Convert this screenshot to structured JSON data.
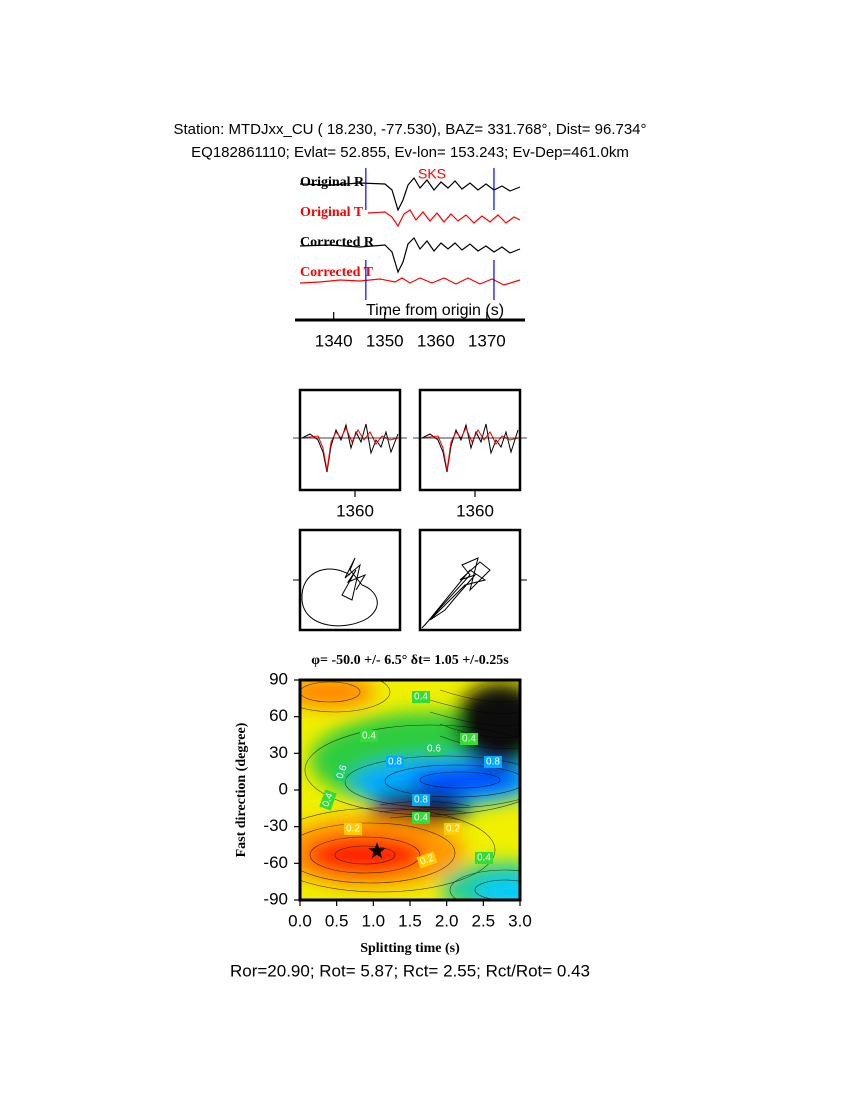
{
  "header": {
    "station": "Station: MTDJxx_CU (  18.230,  -77.530), BAZ=  331.768°, Dist=   96.734°",
    "event": "EQ182861110; Evlat=  52.855, Ev-lon= 153.243; Ev-Dep=461.0km"
  },
  "chart_data": [
    {
      "type": "waveform",
      "traces": [
        "Original R",
        "Original T",
        "Corrected R",
        "Corrected T"
      ],
      "trace_colors": [
        "#000000",
        "#ff0000",
        "#000000",
        "#ff0000"
      ],
      "phase": "SKS",
      "phase_color": "#ff0000",
      "xlabel": "Time from origin (s)",
      "xlim": [
        1333.4,
        1376.5
      ],
      "xticks": [
        1340,
        1350,
        1360,
        1370
      ],
      "window": [
        1346.3,
        1371.4
      ],
      "window_color": "#0000ff"
    },
    {
      "type": "zoom",
      "xlim": [
        1349,
        1369
      ],
      "xticks": [
        1360
      ]
    },
    {
      "type": "zoom",
      "xlim": [
        1349,
        1369
      ],
      "xticks": [
        1360
      ]
    },
    {
      "type": "contour",
      "title": "φ= -50.0 +/- 6.5° δt= 1.05 +/-0.25s",
      "xlabel": "Splitting time (s)",
      "ylabel": "Fast direction (degree)",
      "xlim": [
        0,
        3
      ],
      "ylim": [
        -90,
        90
      ],
      "xticks": [
        {
          "value": 0,
          "label": "0.0"
        },
        {
          "value": 0.5,
          "label": "0.5"
        },
        {
          "value": 1,
          "label": "1.0"
        },
        {
          "value": 1.5,
          "label": "1.5"
        },
        {
          "value": 2,
          "label": "2.0"
        },
        {
          "value": 2.5,
          "label": "2.5"
        },
        {
          "value": 3,
          "label": "3.0"
        }
      ],
      "yticks": [
        90,
        60,
        30,
        0,
        -30,
        -60,
        -90
      ],
      "best": {
        "x": 1.05,
        "y": -50
      },
      "contour_labels": [
        0.4,
        0.4,
        0.6,
        0.4,
        0.8,
        0.8,
        0.6,
        0.4,
        0.8,
        0.4,
        0.2,
        0.2,
        0.2,
        0.4
      ]
    }
  ],
  "footer": "Ror=20.90; Rot= 5.87; Rct= 2.55; Rct/Rot= 0.43"
}
